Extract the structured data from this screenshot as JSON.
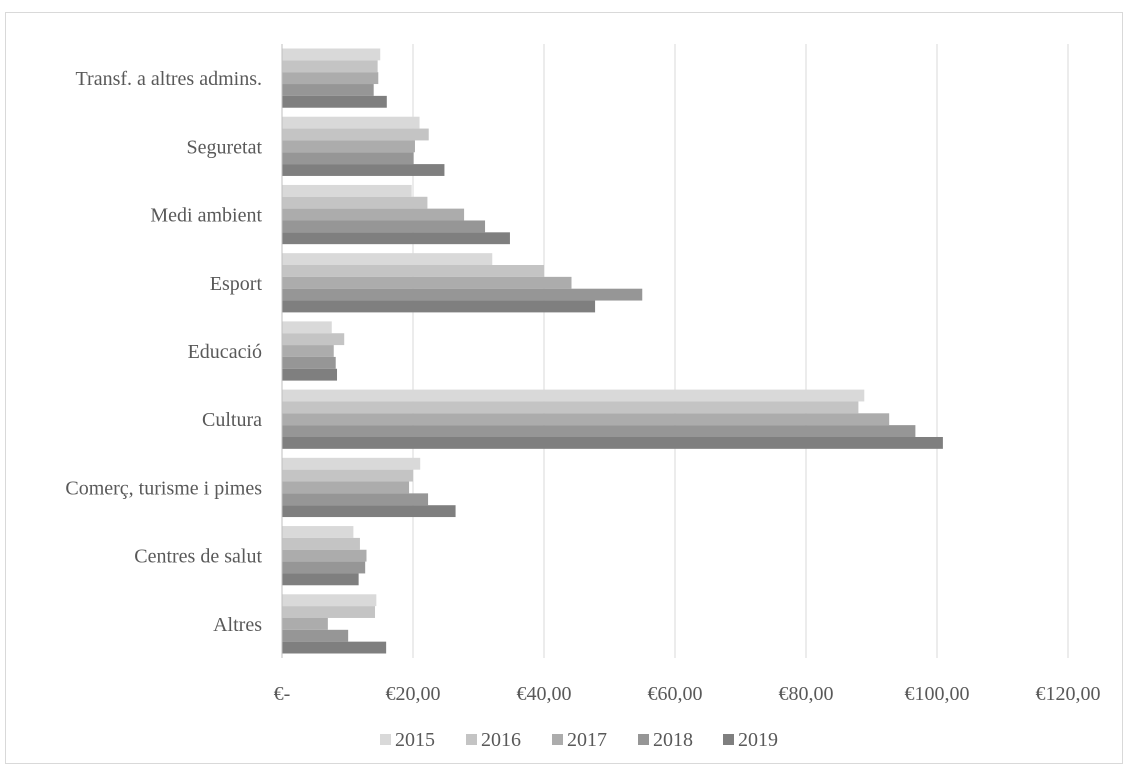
{
  "chart_data": {
    "type": "bar",
    "orientation": "horizontal",
    "categories": [
      "Transf. a altres admins.",
      "Seguretat",
      "Medi ambient",
      "Esport",
      "Educació",
      "Cultura",
      "Comerç, turisme i pimes",
      "Centres de salut",
      "Altres"
    ],
    "series": [
      {
        "name": "2015",
        "color": "#d9d9d9",
        "values": [
          15.0,
          21.0,
          19.8,
          32.1,
          7.6,
          88.9,
          21.1,
          10.9,
          14.4
        ]
      },
      {
        "name": "2016",
        "color": "#c4c4c4",
        "values": [
          14.6,
          22.4,
          22.2,
          40.0,
          9.5,
          88.0,
          20.0,
          11.9,
          14.2
        ]
      },
      {
        "name": "2017",
        "color": "#acacac",
        "values": [
          14.7,
          20.3,
          27.8,
          44.2,
          7.9,
          92.7,
          19.4,
          12.9,
          7.0
        ]
      },
      {
        "name": "2018",
        "color": "#969696",
        "values": [
          14.0,
          20.1,
          31.0,
          55.0,
          8.2,
          96.7,
          22.3,
          12.7,
          10.1
        ]
      },
      {
        "name": "2019",
        "color": "#7f7f7f",
        "values": [
          16.0,
          24.8,
          34.8,
          47.8,
          8.4,
          100.9,
          26.5,
          11.7,
          15.9
        ]
      }
    ],
    "xlim": [
      0,
      120
    ],
    "x_ticks": [
      "€-",
      "€20,00",
      "€40,00",
      "€60,00",
      "€80,00",
      "€100,00",
      "€120,00"
    ],
    "grid": "vertical",
    "legend_position": "bottom"
  }
}
